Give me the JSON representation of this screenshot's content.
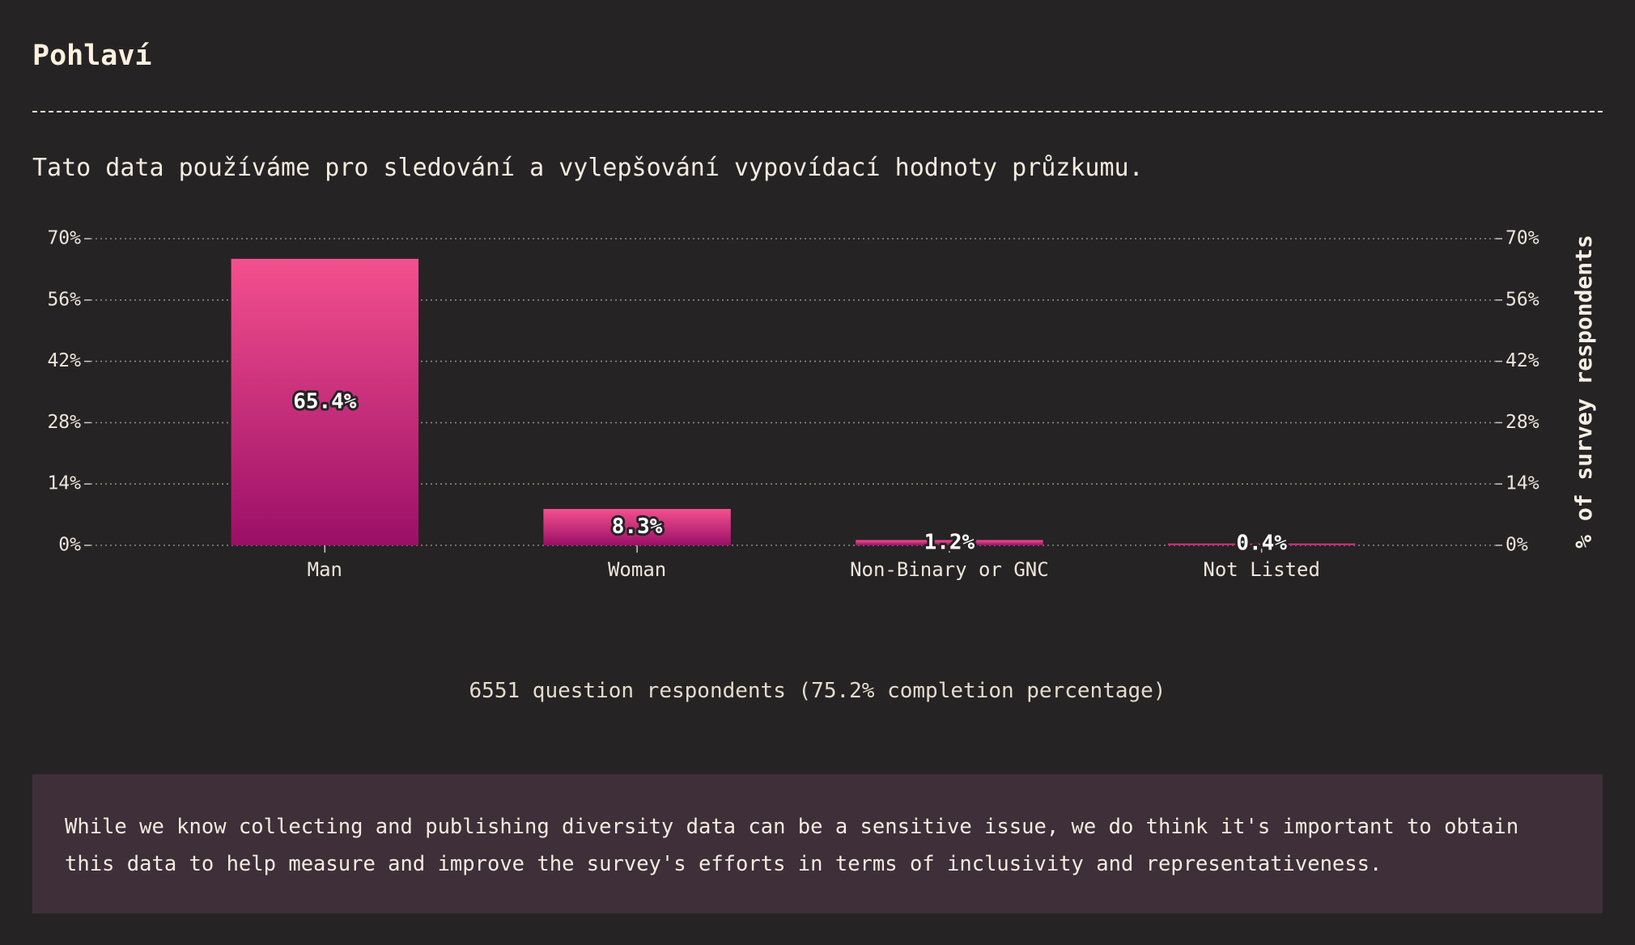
{
  "header": {
    "title": "Pohlaví",
    "subtitle": "Tato data používáme pro sledování a vylepšování vypovídací hodnoty průzkumu."
  },
  "chart_data": {
    "type": "bar",
    "categories": [
      "Man",
      "Woman",
      "Non-Binary or GNC",
      "Not Listed"
    ],
    "values": [
      65.4,
      8.3,
      1.2,
      0.4
    ],
    "value_labels": [
      "65.4%",
      "8.3%",
      "1.2%",
      "0.4%"
    ],
    "title": "",
    "xlabel": "",
    "ylabel": "% of survey respondents",
    "ylim": [
      0,
      70
    ],
    "yticks": [
      0,
      14,
      28,
      42,
      56,
      70
    ],
    "ytick_labels": [
      "0%",
      "14%",
      "28%",
      "42%",
      "56%",
      "70%"
    ],
    "grid": true,
    "bar_gradient": [
      "#f4508e",
      "#9b0f67"
    ]
  },
  "footer": {
    "respondents": "6551 question respondents (75.2% completion percentage)",
    "note": "While we know collecting and publishing diversity data can be a sensitive issue, we do think it's important to obtain this data to help measure and improve the survey's efforts in terms of inclusivity and representativeness."
  }
}
